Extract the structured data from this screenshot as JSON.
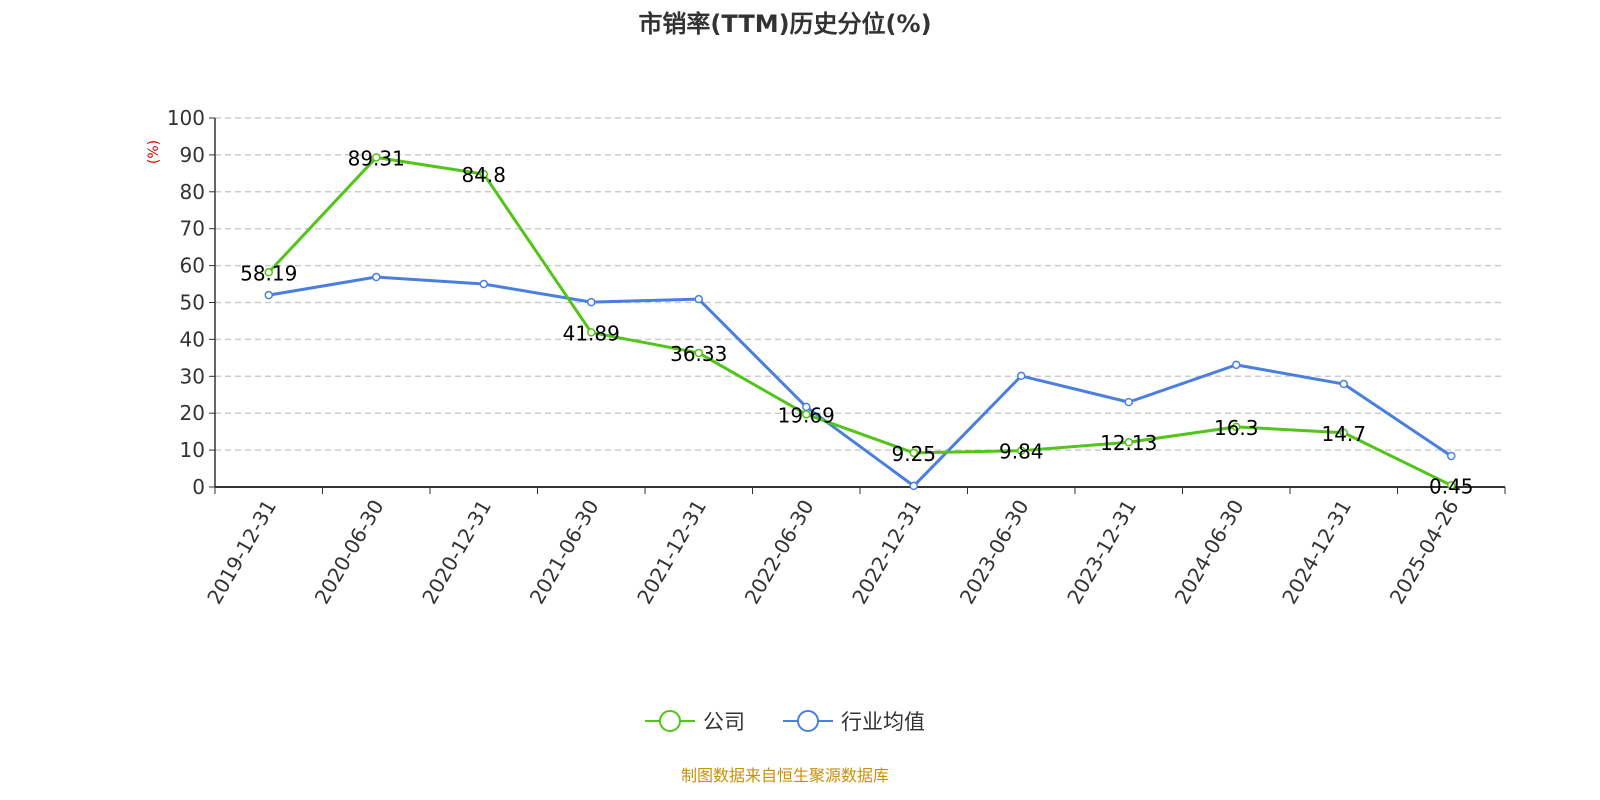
{
  "chart_data": {
    "type": "line",
    "title": "市销率(TTM)历史分位(%)",
    "ylabel": "(%)",
    "ylim": [
      0,
      100
    ],
    "yticks": [
      0,
      10,
      20,
      30,
      40,
      50,
      60,
      70,
      80,
      90,
      100
    ],
    "grid": true,
    "legend_position": "bottom",
    "categories": [
      "2019-12-31",
      "2020-06-30",
      "2020-12-31",
      "2021-06-30",
      "2021-12-31",
      "2022-06-30",
      "2022-12-31",
      "2023-06-30",
      "2023-12-31",
      "2024-06-30",
      "2024-12-31",
      "2025-04-26"
    ],
    "series": [
      {
        "name": "公司",
        "color": "#52c41a",
        "labeled": true,
        "values": [
          58.19,
          89.31,
          84.8,
          41.89,
          36.33,
          19.69,
          9.25,
          9.84,
          12.13,
          16.3,
          14.7,
          0.45
        ]
      },
      {
        "name": "行业均值",
        "color": "#4a7fdf",
        "labeled": false,
        "values": [
          52.0,
          56.9,
          55.0,
          50.1,
          50.9,
          21.7,
          0.3,
          30.1,
          23.0,
          33.1,
          27.9,
          8.4
        ]
      }
    ]
  },
  "footer": {
    "source": "制图数据来自恒生聚源数据库",
    "color": "#c8900a"
  },
  "colors": {
    "ylabel": "#e00000"
  }
}
